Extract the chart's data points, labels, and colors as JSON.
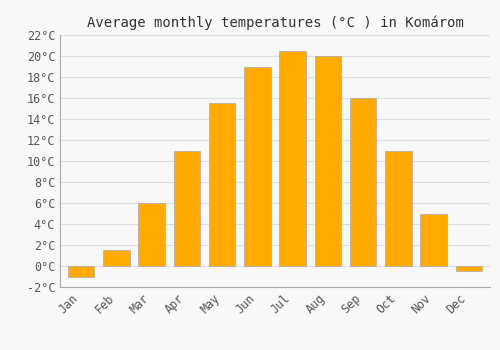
{
  "title": "Average monthly temperatures (°C ) in Komárom",
  "months": [
    "Jan",
    "Feb",
    "Mar",
    "Apr",
    "May",
    "Jun",
    "Jul",
    "Aug",
    "Sep",
    "Oct",
    "Nov",
    "Dec"
  ],
  "values": [
    -1.0,
    1.5,
    6.0,
    11.0,
    15.5,
    19.0,
    20.5,
    20.0,
    16.0,
    11.0,
    5.0,
    -0.5
  ],
  "bar_color": "#FFAA00",
  "bar_edge_color": "#AAAAAA",
  "background_color": "#f8f8f8",
  "grid_color": "#dddddd",
  "ylim": [
    -2,
    22
  ],
  "yticks": [
    -2,
    0,
    2,
    4,
    6,
    8,
    10,
    12,
    14,
    16,
    18,
    20,
    22
  ],
  "tick_label_fontsize": 8.5,
  "title_fontsize": 10,
  "bar_width": 0.75
}
